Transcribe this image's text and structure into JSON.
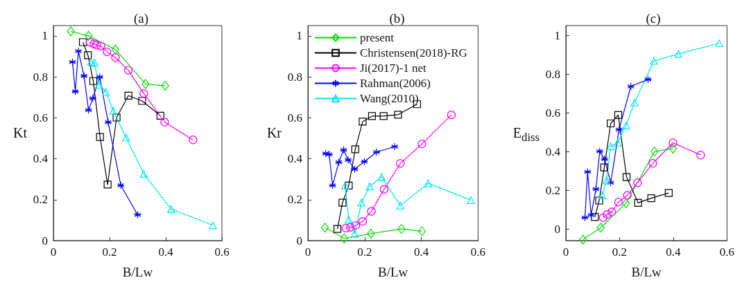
{
  "chart_data": [
    {
      "type": "line",
      "title": "(a)",
      "xlabel": "B/Lw",
      "ylabel": "Kt",
      "xlim": [
        0,
        0.6
      ],
      "xticks": [
        0,
        0.2,
        0.4,
        0.6
      ],
      "ylim": [
        0,
        1.05
      ],
      "yticks": [
        0,
        0.2,
        0.4,
        0.6,
        0.8,
        1
      ],
      "grid": false,
      "legend": false,
      "series": [
        {
          "color": "#00dd00",
          "marker": "diamond",
          "x": [
            0.062,
            0.125,
            0.221,
            0.328,
            0.398
          ],
          "values": [
            1.022,
            1.0,
            0.933,
            0.765,
            0.756
          ]
        },
        {
          "color": "#000000",
          "marker": "square",
          "x": [
            0.105,
            0.123,
            0.142,
            0.166,
            0.193,
            0.225,
            0.267,
            0.316,
            0.381
          ],
          "values": [
            0.969,
            0.905,
            0.779,
            0.506,
            0.274,
            0.601,
            0.708,
            0.682,
            0.61
          ]
        },
        {
          "color": "#ff00ff",
          "marker": "circle",
          "x": [
            0.13,
            0.144,
            0.154,
            0.169,
            0.191,
            0.221,
            0.267,
            0.322,
            0.396,
            0.497
          ],
          "values": [
            0.969,
            0.961,
            0.955,
            0.95,
            0.922,
            0.894,
            0.832,
            0.718,
            0.579,
            0.492
          ]
        },
        {
          "color": "#0000ff",
          "marker": "cross",
          "x": [
            0.068,
            0.078,
            0.089,
            0.109,
            0.125,
            0.14,
            0.165,
            0.195,
            0.24,
            0.3
          ],
          "values": [
            0.872,
            0.728,
            0.925,
            0.804,
            0.637,
            0.695,
            0.799,
            0.578,
            0.27,
            0.126
          ]
        },
        {
          "color": "#00e5ee",
          "marker": "triangle",
          "x": [
            0.134,
            0.146,
            0.162,
            0.187,
            0.213,
            0.259,
            0.322,
            0.419,
            0.568
          ],
          "values": [
            0.872,
            0.869,
            0.762,
            0.726,
            0.634,
            0.503,
            0.326,
            0.154,
            0.075
          ]
        }
      ]
    },
    {
      "type": "line",
      "title": "(b)",
      "xlabel": "B/Lw",
      "ylabel": "Kr",
      "xlim": [
        0,
        0.6
      ],
      "xticks": [
        0,
        0.2,
        0.4,
        0.6
      ],
      "ylim": [
        0,
        1.05
      ],
      "yticks": [
        0,
        0.2,
        0.4,
        0.6,
        0.8,
        1
      ],
      "grid": false,
      "legend": "top left",
      "series": [
        {
          "name": "present",
          "color": "#00dd00",
          "marker": "diamond",
          "x": [
            0.06,
            0.128,
            0.222,
            0.33,
            0.402
          ],
          "values": [
            0.063,
            0.011,
            0.034,
            0.057,
            0.046
          ]
        },
        {
          "name": "Christensen(2018)-RG",
          "color": "#000000",
          "marker": "square",
          "x": [
            0.104,
            0.122,
            0.144,
            0.167,
            0.193,
            0.226,
            0.267,
            0.318,
            0.385
          ],
          "values": [
            0.057,
            0.185,
            0.269,
            0.446,
            0.581,
            0.608,
            0.608,
            0.615,
            0.666
          ]
        },
        {
          "name": "Ji(2017)-1 net",
          "color": "#ff00ff",
          "marker": "circle",
          "x": [
            0.134,
            0.15,
            0.169,
            0.193,
            0.224,
            0.269,
            0.326,
            0.402,
            0.506
          ],
          "values": [
            0.061,
            0.065,
            0.074,
            0.094,
            0.143,
            0.251,
            0.377,
            0.472,
            0.614
          ]
        },
        {
          "name": "Rahman(2006)",
          "color": "#0000ff",
          "marker": "cross",
          "x": [
            0.063,
            0.075,
            0.087,
            0.109,
            0.126,
            0.142,
            0.165,
            0.199,
            0.242,
            0.306
          ],
          "values": [
            0.425,
            0.421,
            0.269,
            0.383,
            0.443,
            0.394,
            0.349,
            0.386,
            0.432,
            0.459
          ]
        },
        {
          "name": "Wang(2010)",
          "color": "#00e5ee",
          "marker": "triangle",
          "x": [
            0.131,
            0.144,
            0.165,
            0.189,
            0.218,
            0.26,
            0.326,
            0.424,
            0.575
          ],
          "values": [
            0.269,
            0.103,
            0.034,
            0.186,
            0.265,
            0.311,
            0.171,
            0.28,
            0.198
          ]
        }
      ]
    },
    {
      "type": "line",
      "title": "(c)",
      "xlabel": "B/Lw",
      "ylabel": "E$_{diss}$",
      "xlim": [
        0,
        0.6
      ],
      "xticks": [
        0,
        0.2,
        0.4,
        0.6
      ],
      "ylim": [
        -0.06,
        1.05
      ],
      "yticks": [
        0,
        0.2,
        0.4,
        0.6,
        0.8,
        1
      ],
      "grid": false,
      "legend": false,
      "series": [
        {
          "color": "#00dd00",
          "marker": "diamond",
          "x": [
            0.064,
            0.13,
            0.224,
            0.33,
            0.399
          ],
          "values": [
            -0.055,
            0.007,
            0.133,
            0.4,
            0.415
          ]
        },
        {
          "color": "#000000",
          "marker": "square",
          "x": [
            0.108,
            0.124,
            0.143,
            0.167,
            0.195,
            0.226,
            0.269,
            0.318,
            0.383
          ],
          "values": [
            0.062,
            0.147,
            0.318,
            0.545,
            0.588,
            0.268,
            0.135,
            0.159,
            0.186
          ]
        },
        {
          "color": "#ff00ff",
          "marker": "circle",
          "x": [
            0.139,
            0.154,
            0.171,
            0.196,
            0.229,
            0.267,
            0.324,
            0.399,
            0.502
          ],
          "values": [
            0.059,
            0.076,
            0.088,
            0.139,
            0.174,
            0.239,
            0.339,
            0.445,
            0.382
          ]
        },
        {
          "color": "#0000ff",
          "marker": "cross",
          "x": [
            0.071,
            0.081,
            0.094,
            0.112,
            0.126,
            0.144,
            0.167,
            0.198,
            0.242,
            0.306
          ],
          "values": [
            0.059,
            0.295,
            0.072,
            0.206,
            0.401,
            0.36,
            0.239,
            0.513,
            0.736,
            0.772
          ]
        },
        {
          "color": "#00e5ee",
          "marker": "triangle",
          "x": [
            0.136,
            0.151,
            0.167,
            0.193,
            0.224,
            0.256,
            0.328,
            0.419,
            0.571
          ],
          "values": [
            0.174,
            0.251,
            0.427,
            0.445,
            0.535,
            0.653,
            0.868,
            0.904,
            0.959
          ]
        }
      ]
    }
  ]
}
